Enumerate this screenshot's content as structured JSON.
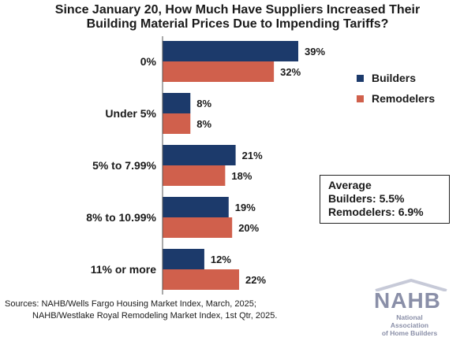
{
  "chart_data": {
    "type": "bar",
    "orientation": "horizontal",
    "title_line1": "Since January 20, How Much Have Suppliers Increased Their",
    "title_line2": "Building Material Prices Due to Impending Tariffs?",
    "categories": [
      "0%",
      "Under 5%",
      "5% to 7.99%",
      "8% to 10.99%",
      "11% or more"
    ],
    "series": [
      {
        "name": "Builders",
        "values": [
          39,
          8,
          21,
          19,
          12
        ],
        "labels": [
          "39%",
          "8%",
          "21%",
          "19%",
          "12%"
        ],
        "color": "#1c3a6b"
      },
      {
        "name": "Remodelers",
        "values": [
          32,
          8,
          18,
          20,
          22
        ],
        "labels": [
          "32%",
          "8%",
          "18%",
          "20%",
          "22%"
        ],
        "color": "#d0604c"
      }
    ],
    "xlim": [
      0,
      39
    ],
    "legend": "right",
    "grid": false
  },
  "average_box": {
    "heading": "Average",
    "builders": "Builders: 5.5%",
    "remodelers": "Remodelers: 6.9%"
  },
  "sources": {
    "line1": "Sources: NAHB/Wells Fargo Housing Market Index, March, 2025;",
    "line2": "NAHB/Westlake Royal Remodeling Market Index, 1st Qtr, 2025."
  },
  "logo": {
    "wordmark": "NAHB",
    "subtitle_line1": "National Association",
    "subtitle_line2": "of Home Builders"
  }
}
